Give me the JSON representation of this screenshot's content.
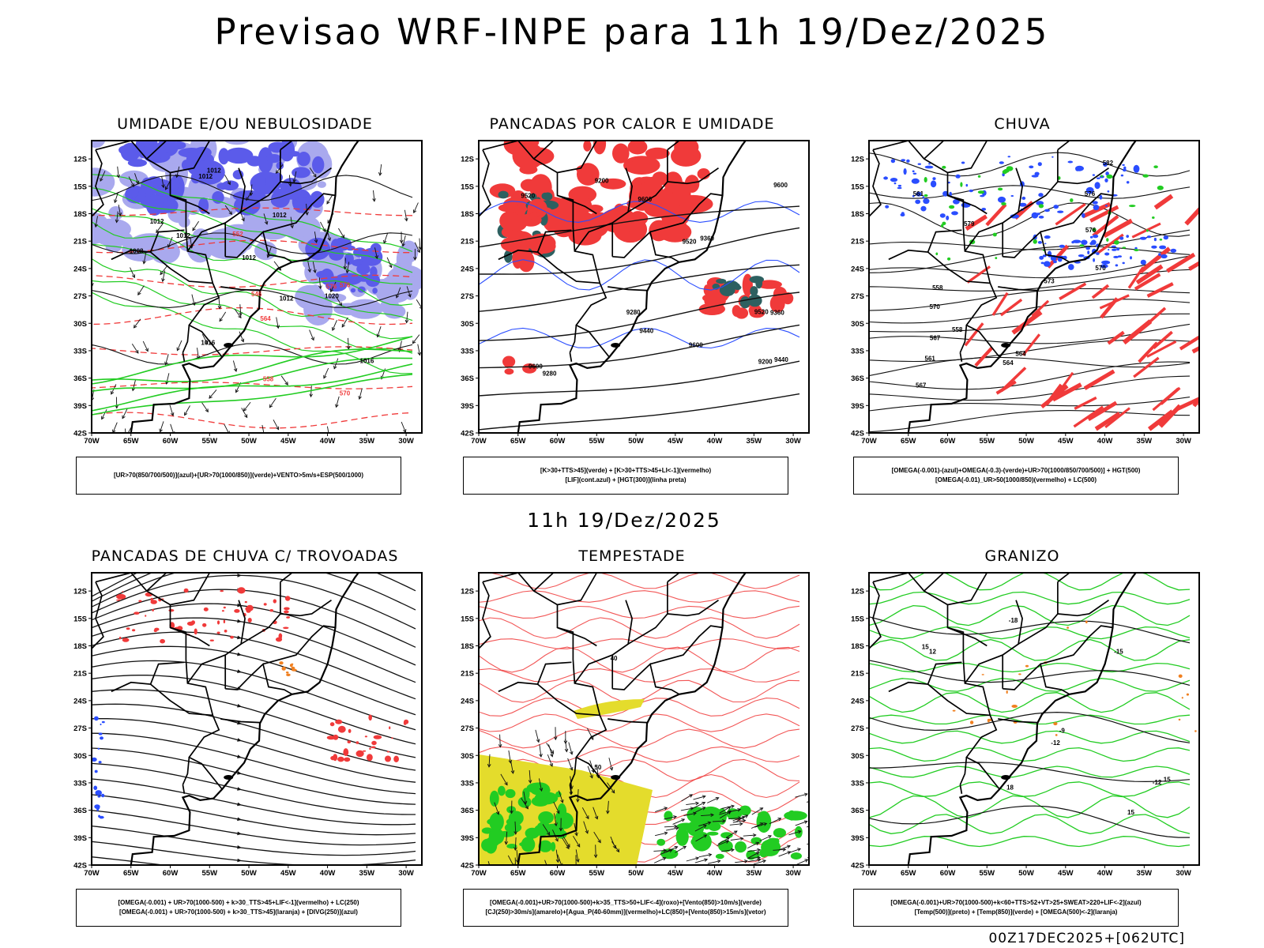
{
  "page": {
    "title": "Previsao WRF-INPE  para 11h 19/Dez/2025",
    "mid_time": "11h 19/Dez/2025",
    "footer": "00Z17DEC2025+[062UTC]"
  },
  "axes": {
    "lat_labels": [
      "12S",
      "15S",
      "18S",
      "21S",
      "24S",
      "27S",
      "30S",
      "33S",
      "36S",
      "39S",
      "42S"
    ],
    "lon_labels": [
      "70W",
      "65W",
      "60W",
      "55W",
      "50W",
      "45W",
      "40W",
      "35W",
      "30W"
    ]
  },
  "panels": [
    {
      "id": "umidade",
      "title": "UMIDADE E/OU NEBULOSIDADE",
      "legend": [
        "[UR>70(850/700/500)](azul)+[UR>70(1000/850)](verde)+VENTO>5m/s+ESP(500/1000)"
      ],
      "contour_labels": [
        "1012",
        "1012",
        "1012",
        "1012",
        "1016",
        "1012",
        "1008",
        "1012",
        "1016",
        "1020",
        "1012",
        "576",
        "570",
        "576",
        "564",
        "558",
        "552",
        "546"
      ]
    },
    {
      "id": "pancadas-calor",
      "title": "PANCADAS POR CALOR E UMIDADE",
      "legend": [
        "[K>30+TTS>45](verde)  +  [K>30+TTS>45+LI<-1](vermelho)",
        "[LIF](cont.azul)  +  [HGT(300)](linha preta)"
      ],
      "contour_labels": [
        "9600",
        "9600",
        "9600",
        "9600",
        "9520",
        "9520",
        "9520",
        "9440",
        "9440",
        "9360",
        "9360",
        "9280",
        "9280",
        "9200",
        "9200"
      ]
    },
    {
      "id": "chuva",
      "title": "CHUVA",
      "legend": [
        "[OMEGA(-0.001)-(azul)+OMEGA(-0.3)-(verde)+UR>70(1000/850/700/500)]  +  HGT(500)",
        "[OMEGA(-0.01)_UR>50(1000/850)(vermelho)  +  LC(500)"
      ],
      "contour_labels": [
        "582",
        "579",
        "576",
        "576",
        "573",
        "570",
        "567",
        "564",
        "561",
        "558",
        "570",
        "567",
        "564",
        "561",
        "558"
      ]
    },
    {
      "id": "trovoadas",
      "title": "PANCADAS DE CHUVA C/ TROVOADAS",
      "legend": [
        "[OMEGA(-0.001)  +  UR>70(1000-500)  +  k>30_TTS>45+LIF<-1](vermelho)  +  LC(250)",
        "[OMEGA(-0.001)  +  UR>70(1000-500)  +  k>30_TTS>45](laranja)  +  [DIVG(250)](azul)"
      ],
      "contour_labels": []
    },
    {
      "id": "tempestade",
      "title": "TEMPESTADE",
      "legend": [
        "[OMEGA(-0.001)+UR>70(1000-500)+k>35_TTS>50+LIF<-4](roxo)+[Vento(850)>10m/s](verde)",
        "[CJ(250)>30m/s](amarelo)+[Agua_P(40-60mm)](vermelho)+LC(850)+[Vento(850)>15m/s](vetor)"
      ],
      "contour_labels": [
        "50",
        "40"
      ]
    },
    {
      "id": "granizo",
      "title": "GRANIZO",
      "legend": [
        "[OMEGA(-0.001)+UR>70(1000-500)+k<60+TTS>52+VT>25+SWEAT>220+LIF<-2](azul)",
        "[Temp(500)](preto)  +  [Temp(850)](verde)  +  [OMEGA(500)<-2](laranja)"
      ],
      "contour_labels": [
        "-9",
        "-12",
        "-12",
        "-15",
        "-18",
        "15",
        "12",
        "15",
        "18",
        "15"
      ]
    }
  ],
  "colors": {
    "frame": "#000000",
    "red": "#f03a3a",
    "green": "#22cc22",
    "blue": "#2a4dff",
    "lightblue": "#a9a9ee",
    "orange": "#f08020",
    "yellow": "#e4dc2c",
    "darkteal": "#2d6060",
    "purple": "#5b5bea"
  }
}
